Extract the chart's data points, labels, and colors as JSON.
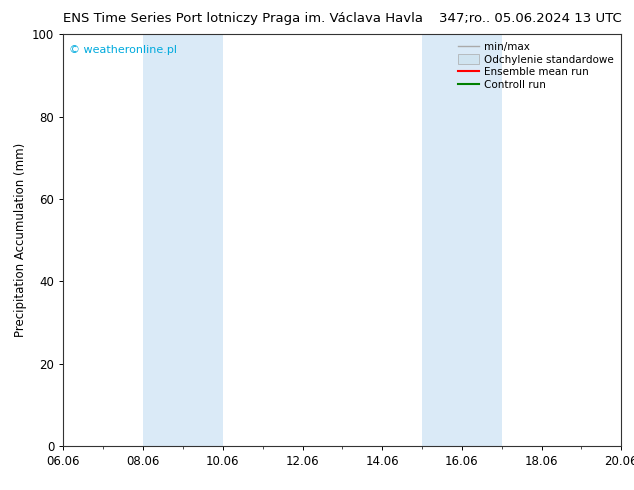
{
  "title_left": "ENS Time Series Port lotniczy Praga im. Václava Havla",
  "title_right": "347;ro.. 05.06.2024 13 UTC",
  "ylabel": "Precipitation Accumulation (mm)",
  "watermark": "© weatheronline.pl",
  "watermark_color": "#00aadd",
  "ylim": [
    0,
    100
  ],
  "yticks": [
    0,
    20,
    40,
    60,
    80,
    100
  ],
  "x_start": 6.06,
  "x_end": 20.06,
  "xtick_labels": [
    "06.06",
    "08.06",
    "10.06",
    "12.06",
    "14.06",
    "16.06",
    "18.06",
    "20.06"
  ],
  "xtick_positions": [
    6.06,
    8.06,
    10.06,
    12.06,
    14.06,
    16.06,
    18.06,
    20.06
  ],
  "shaded_bands": [
    {
      "x_start": 8.06,
      "x_end": 10.06,
      "color": "#daeaf7"
    },
    {
      "x_start": 15.06,
      "x_end": 17.06,
      "color": "#daeaf7"
    }
  ],
  "legend_items": [
    {
      "label": "min/max",
      "color": "#aaaaaa",
      "style": "hline"
    },
    {
      "label": "Odchylenie standardowe",
      "color": "#d0e4f0",
      "style": "fill"
    },
    {
      "label": "Ensemble mean run",
      "color": "#ff0000",
      "style": "line"
    },
    {
      "label": "Controll run",
      "color": "#008000",
      "style": "line"
    }
  ],
  "bg_color": "#ffffff",
  "plot_bg_color": "#ffffff",
  "title_fontsize": 9.5,
  "axis_label_fontsize": 8.5,
  "tick_fontsize": 8.5,
  "legend_fontsize": 7.5
}
